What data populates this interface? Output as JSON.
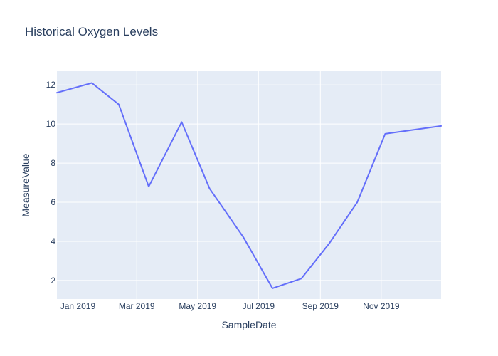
{
  "chart_data": {
    "type": "line",
    "title": "Historical Oxygen Levels",
    "xlabel": "SampleDate",
    "ylabel": "MeasureValue",
    "x_is_date": true,
    "xlim": [
      "2018-12-11",
      "2019-12-31"
    ],
    "ylim": [
      1.05,
      12.7
    ],
    "xticks": [
      {
        "date": "2019-01-01",
        "label": "Jan 2019"
      },
      {
        "date": "2019-03-01",
        "label": "Mar 2019"
      },
      {
        "date": "2019-05-01",
        "label": "May 2019"
      },
      {
        "date": "2019-07-01",
        "label": "Jul 2019"
      },
      {
        "date": "2019-09-01",
        "label": "Sep 2019"
      },
      {
        "date": "2019-11-01",
        "label": "Nov 2019"
      }
    ],
    "yticks": [
      2,
      4,
      6,
      8,
      10,
      12
    ],
    "grid": true,
    "series": [
      {
        "color": "#636efa",
        "x": [
          "2018-12-11",
          "2019-01-15",
          "2019-02-11",
          "2019-03-13",
          "2019-04-15",
          "2019-05-13",
          "2019-06-16",
          "2019-07-15",
          "2019-08-13",
          "2019-09-10",
          "2019-10-08",
          "2019-11-05",
          "2019-12-31"
        ],
        "y": [
          11.6,
          12.1,
          11.0,
          6.8,
          10.1,
          6.7,
          4.2,
          1.6,
          2.1,
          3.9,
          6.0,
          9.5,
          9.9
        ]
      }
    ]
  }
}
